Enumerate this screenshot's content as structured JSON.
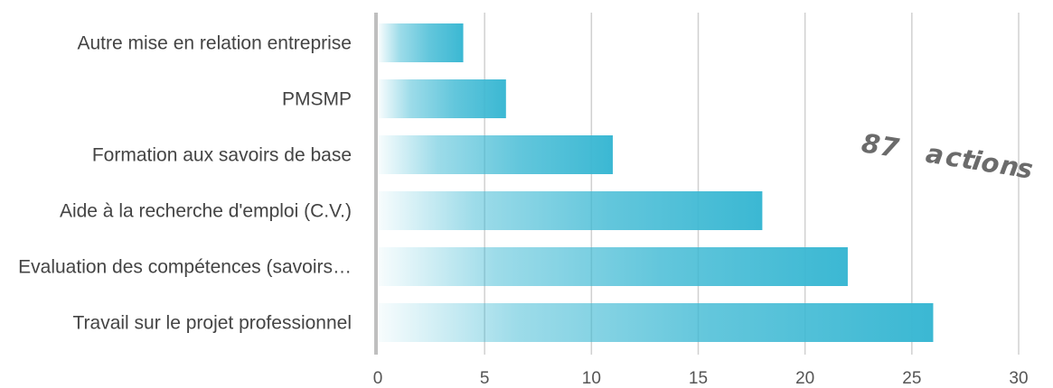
{
  "chart_data": {
    "type": "bar",
    "orientation": "horizontal",
    "categories": [
      "Autre mise en relation entreprise",
      "PMSMP",
      "Formation aux savoirs de base",
      "Aide à la recherche d'emploi (C.V.)",
      "Evaluation des compétences (savoirs…",
      "Travail sur le projet professionnel"
    ],
    "values": [
      4,
      6,
      11,
      18,
      22,
      26
    ],
    "xlim": [
      0,
      30
    ],
    "xticks": [
      0,
      5,
      10,
      15,
      20,
      25,
      30
    ],
    "grid": "vertical",
    "title": "",
    "xlabel": "",
    "ylabel": "",
    "bar_color": "#3bb8d3",
    "annotation": "87 actions"
  }
}
